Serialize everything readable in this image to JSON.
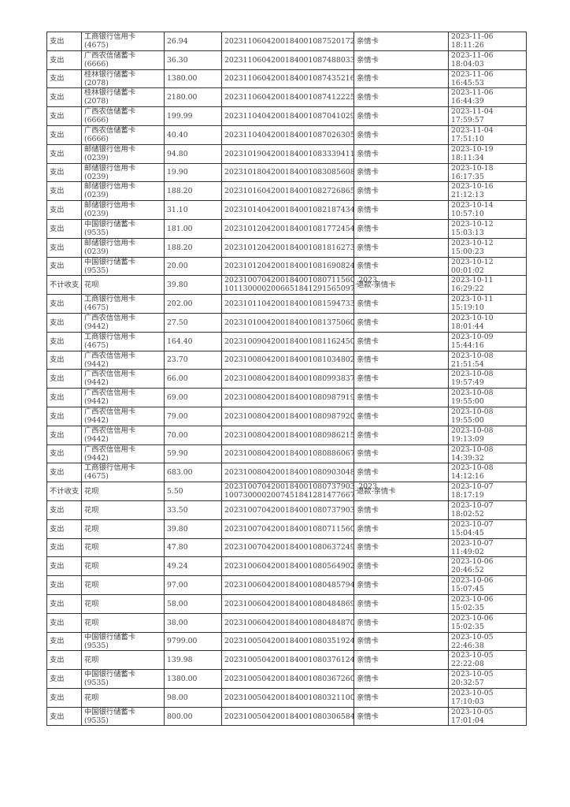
{
  "rows": [
    [
      "支出",
      "工商银行信用卡\n(4675)",
      "26.94",
      "2023110604200184001087520172",
      "亲情卡",
      "2023-11-06\n18:11:26"
    ],
    [
      "支出",
      "广西农信储蓄卡\n(6666)",
      "36.30",
      "2023110604200184001087488033",
      "亲情卡",
      "2023-11-06\n18:04:03"
    ],
    [
      "支出",
      "桂林银行储蓄卡\n(2078)",
      "1380.00",
      "2023110604200184001087435216",
      "亲情卡",
      "2023-11-06\n16:45:53"
    ],
    [
      "支出",
      "桂林银行储蓄卡\n(2078)",
      "2180.00",
      "2023110604200184001087412225",
      "亲情卡",
      "2023-11-06\n16:44:39"
    ],
    [
      "支出",
      "广西农信储蓄卡\n(6666)",
      "199.99",
      "2023110404200184001087041029",
      "亲情卡",
      "2023-11-04\n17:59:57"
    ],
    [
      "支出",
      "广西农信储蓄卡\n(6666)",
      "40.40",
      "2023110404200184001087026305",
      "亲情卡",
      "2023-11-04\n17:51:10"
    ],
    [
      "支出",
      "邮储银行信用卡\n(0239)",
      "94.80",
      "2023101904200184001083339411",
      "亲情卡",
      "2023-10-19\n18:11:34"
    ],
    [
      "支出",
      "邮储银行信用卡\n(0239)",
      "19.90",
      "2023101804200184001083085608",
      "亲情卡",
      "2023-10-18\n16:17:35"
    ],
    [
      "支出",
      "邮储银行信用卡\n(0239)",
      "188.20",
      "2023101604200184001082726865",
      "亲情卡",
      "2023-10-16\n21:12:13"
    ],
    [
      "支出",
      "邮储银行信用卡\n(0239)",
      "31.10",
      "2023101404200184001082187434",
      "亲情卡",
      "2023-10-14\n10:57:10"
    ],
    [
      "支出",
      "中国银行储蓄卡\n(9535)",
      "181.00",
      "2023101204200184001081772454",
      "亲情卡",
      "2023-10-12\n15:03:13"
    ],
    [
      "支出",
      "邮储银行信用卡\n(0239)",
      "188.20",
      "2023101204200184001081816273",
      "亲情卡",
      "2023-10-12\n15:00:23"
    ],
    [
      "支出",
      "中国银行储蓄卡\n(9535)",
      "20.00",
      "2023101204200184001081690824",
      "亲情卡",
      "2023-10-12\n00:01:02"
    ],
    [
      "不计收支",
      "花呗",
      "39.80",
      "2023100704200184001080711560_2023\n101130000200665184129156509７",
      "退款-亲情卡",
      "2023-10-11\n16:29:22"
    ],
    [
      "支出",
      "工商银行信用卡\n(4675)",
      "202.00",
      "2023101104200184001081594733",
      "亲情卡",
      "2023-10-11\n15:19:10"
    ],
    [
      "支出",
      "广西农信信用卡\n(9442)",
      "27.50",
      "2023101004200184001081375060",
      "亲情卡",
      "2023-10-10\n18:01:44"
    ],
    [
      "支出",
      "工商银行信用卡\n(4675)",
      "164.40",
      "2023100904200184001081162450",
      "亲情卡",
      "2023-10-09\n15:44:16"
    ],
    [
      "支出",
      "广西农信信用卡\n(9442)",
      "23.70",
      "2023100804200184001081034802",
      "亲情卡",
      "2023-10-08\n21:51:54"
    ],
    [
      "支出",
      "广西农信信用卡\n(9442)",
      "66.00",
      "2023100804200184001080993837",
      "亲情卡",
      "2023-10-08\n19:57:49"
    ],
    [
      "支出",
      "广西农信信用卡\n(9442)",
      "69.00",
      "2023100804200184001080987919",
      "亲情卡",
      "2023-10-08\n19:55:00"
    ],
    [
      "支出",
      "广西农信信用卡\n(9442)",
      "79.00",
      "2023100804200184001080987920",
      "亲情卡",
      "2023-10-08\n19:55:00"
    ],
    [
      "支出",
      "广西农信信用卡\n(9442)",
      "70.00",
      "2023100804200184001080986215",
      "亲情卡",
      "2023-10-08\n19:13:09"
    ],
    [
      "支出",
      "广西农信信用卡\n(9442)",
      "59.90",
      "2023100804200184001080886067",
      "亲情卡",
      "2023-10-08\n14:39:32"
    ],
    [
      "支出",
      "工商银行信用卡\n(4675)",
      "683.00",
      "2023100804200184001080903048",
      "亲情卡",
      "2023-10-08\n14:12:16"
    ],
    [
      "不计收支",
      "花呗",
      "5.50",
      "2023100704200184001080737903_2023\n1007300002007451841281477667",
      "退款-亲情卡",
      "2023-10-07\n18:17:19"
    ],
    [
      "支出",
      "花呗",
      "33.50",
      "2023100704200184001080737903",
      "亲情卡",
      "2023-10-07\n18:02:52"
    ],
    [
      "支出",
      "花呗",
      "39.80",
      "2023100704200184001080711560",
      "亲情卡",
      "2023-10-07\n15:04:45"
    ],
    [
      "支出",
      "花呗",
      "47.80",
      "2023100704200184001080637249",
      "亲情卡",
      "2023-10-07\n11:49:02"
    ],
    [
      "支出",
      "花呗",
      "49.24",
      "2023100604200184001080564902",
      "亲情卡",
      "2023-10-06\n20:46:52"
    ],
    [
      "支出",
      "花呗",
      "97.00",
      "2023100604200184001080485794",
      "亲情卡",
      "2023-10-06\n15:07:45"
    ],
    [
      "支出",
      "花呗",
      "58.00",
      "2023100604200184001080484869",
      "亲情卡",
      "2023-10-06\n15:02:35"
    ],
    [
      "支出",
      "花呗",
      "38.00",
      "2023100604200184001080484870",
      "亲情卡",
      "2023-10-06\n15:02:35"
    ],
    [
      "支出",
      "中国银行储蓄卡\n(9535)",
      "9799.00",
      "2023100504200184001080351924",
      "亲情卡",
      "2023-10-05\n22:46:38"
    ],
    [
      "支出",
      "花呗",
      "139.98",
      "2023100504200184001080376124",
      "亲情卡",
      "2023-10-05\n22:22:08"
    ],
    [
      "支出",
      "中国银行储蓄卡\n(9535)",
      "1380.00",
      "2023100504200184001080367260",
      "亲情卡",
      "2023-10-05\n20:32:57"
    ],
    [
      "支出",
      "花呗",
      "98.00",
      "2023100504200184001080321100",
      "亲情卡",
      "2023-10-05\n17:10:03"
    ],
    [
      "支出",
      "中国银行储蓄卡\n(9535)",
      "800.00",
      "2023100504200184001080306584",
      "亲情卡",
      "2023-10-05\n17:01:04"
    ]
  ]
}
